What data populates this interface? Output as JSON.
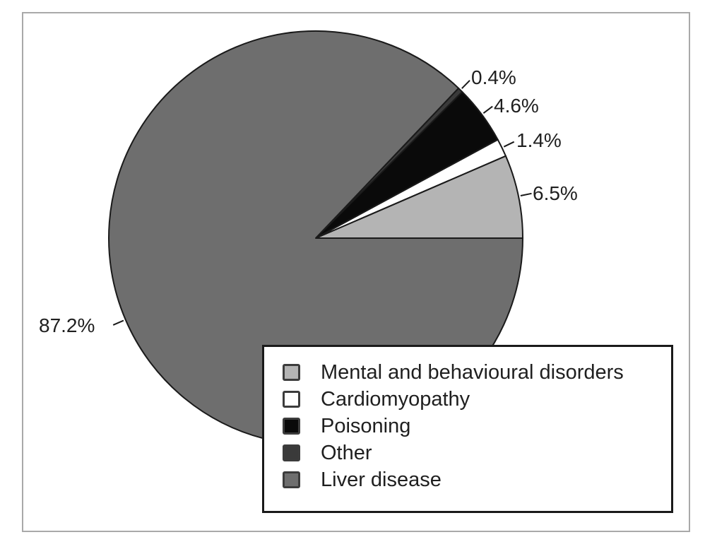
{
  "chart_data": {
    "type": "pie",
    "title": "",
    "categories": [
      "Mental and behavioural disorders",
      "Cardiomyopathy",
      "Poisoning",
      "Other",
      "Liver disease"
    ],
    "values": [
      6.5,
      1.4,
      4.6,
      0.4,
      87.2
    ],
    "labels": [
      "6.5%",
      "1.4%",
      "4.6%",
      "0.4%",
      "87.2%"
    ],
    "colors": [
      "#b4b4b4",
      "#ffffff",
      "#0a0a0a",
      "#3a3a3a",
      "#6e6e6e"
    ],
    "stroke_color": "#1a1a1a",
    "frame_border_color": "#a9a9a9",
    "start_angle_deg": 0,
    "direction": "counterclockwise",
    "legend_position": "bottom-right",
    "grid": false
  }
}
